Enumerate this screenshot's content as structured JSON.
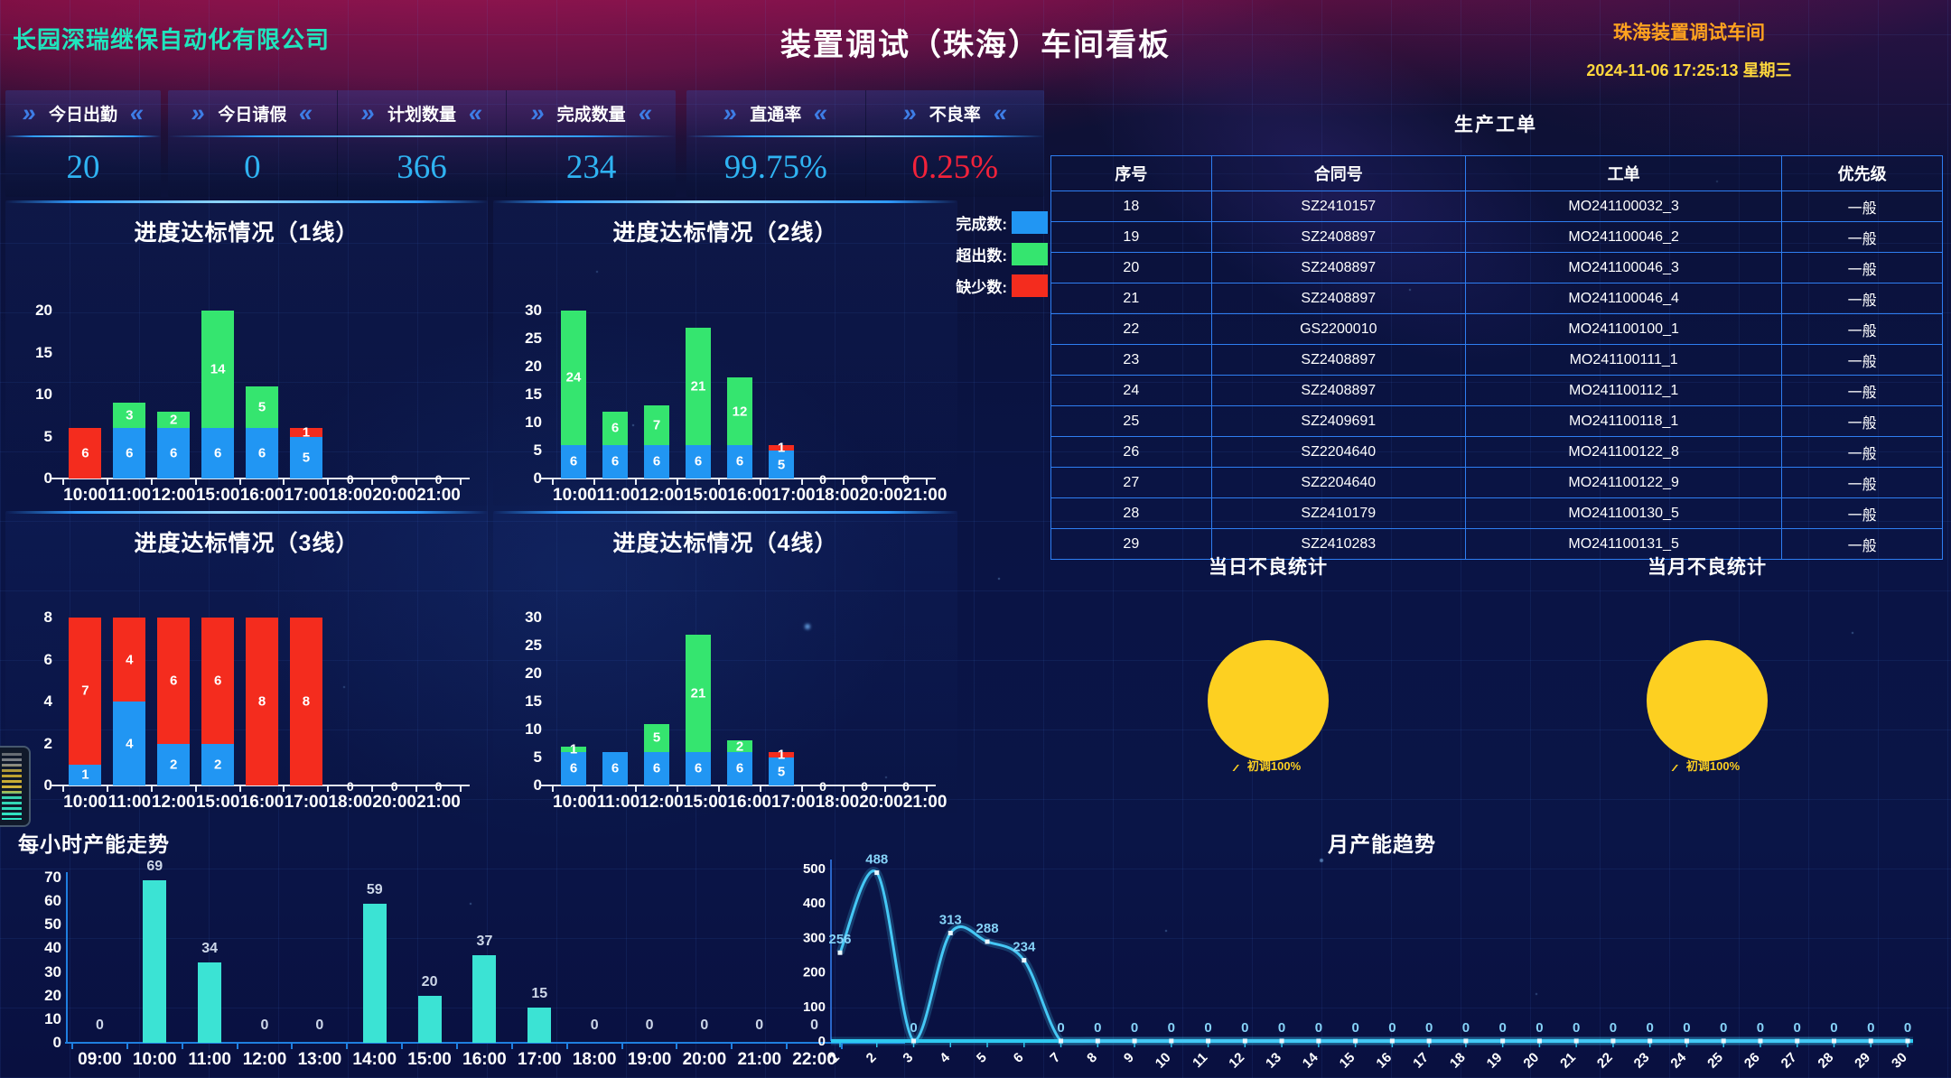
{
  "header": {
    "company": "长园深瑞继保自动化有限公司",
    "title": "装置调试（珠海）车间看板",
    "workshop": "珠海装置调试车间",
    "datetime": "2024-11-06 17:25:13 星期三"
  },
  "kpi_groups": [
    {
      "items": [
        {
          "label": "今日出勤",
          "value": "20"
        }
      ]
    },
    {
      "items": [
        {
          "label": "今日请假",
          "value": "0"
        },
        {
          "label": "计划数量",
          "value": "366"
        },
        {
          "label": "完成数量",
          "value": "234"
        }
      ]
    },
    {
      "items": [
        {
          "label": "直通率",
          "value": "99.75%"
        },
        {
          "label": "不良率",
          "value": "0.25%",
          "alert": true
        }
      ]
    }
  ],
  "legend": [
    {
      "label": "完成数:",
      "color": "#2196f3"
    },
    {
      "label": "超出数:",
      "color": "#35e56f"
    },
    {
      "label": "缺少数:",
      "color": "#f42c1e"
    }
  ],
  "table": {
    "title": "生产工单",
    "columns": [
      "序号",
      "合同号",
      "工单",
      "优先级"
    ],
    "rows": [
      [
        "18",
        "SZ2410157",
        "MO241100032_3",
        "一般"
      ],
      [
        "19",
        "SZ2408897",
        "MO241100046_2",
        "一般"
      ],
      [
        "20",
        "SZ2408897",
        "MO241100046_3",
        "一般"
      ],
      [
        "21",
        "SZ2408897",
        "MO241100046_4",
        "一般"
      ],
      [
        "22",
        "GS2200010",
        "MO241100100_1",
        "一般"
      ],
      [
        "23",
        "SZ2408897",
        "MO241100111_1",
        "一般"
      ],
      [
        "24",
        "SZ2408897",
        "MO241100112_1",
        "一般"
      ],
      [
        "25",
        "SZ2409691",
        "MO241100118_1",
        "一般"
      ],
      [
        "26",
        "SZ2204640",
        "MO241100122_8",
        "一般"
      ],
      [
        "27",
        "SZ2204640",
        "MO241100122_9",
        "一般"
      ],
      [
        "28",
        "SZ2410179",
        "MO241100130_5",
        "一般"
      ],
      [
        "29",
        "SZ2410283",
        "MO241100131_5",
        "一般"
      ]
    ]
  },
  "chart_data": [
    {
      "id": "line1",
      "type": "stacked_bar",
      "title": "进度达标情况（1线）",
      "categories": [
        "10:00",
        "11:00",
        "12:00",
        "15:00",
        "16:00",
        "17:00",
        "18:00",
        "20:00",
        "21:00"
      ],
      "series": [
        {
          "name": "完成数",
          "color": "#2196f3",
          "values": [
            0,
            6,
            6,
            6,
            6,
            5,
            0,
            0,
            0
          ]
        },
        {
          "name": "超出数",
          "color": "#35e56f",
          "values": [
            0,
            3,
            2,
            14,
            5,
            0,
            0,
            0,
            0
          ]
        },
        {
          "name": "缺少数",
          "color": "#f42c1e",
          "values": [
            6,
            0,
            0,
            0,
            0,
            1,
            0,
            0,
            0
          ]
        }
      ],
      "ymax": 20,
      "yticks": [
        0,
        5,
        10,
        15,
        20
      ]
    },
    {
      "id": "line2",
      "type": "stacked_bar",
      "title": "进度达标情况（2线）",
      "categories": [
        "10:00",
        "11:00",
        "12:00",
        "15:00",
        "16:00",
        "17:00",
        "18:00",
        "20:00",
        "21:00"
      ],
      "series": [
        {
          "name": "完成数",
          "color": "#2196f3",
          "values": [
            6,
            6,
            6,
            6,
            6,
            5,
            0,
            0,
            0
          ]
        },
        {
          "name": "超出数",
          "color": "#35e56f",
          "values": [
            24,
            6,
            7,
            21,
            12,
            0,
            0,
            0,
            0
          ]
        },
        {
          "name": "缺少数",
          "color": "#f42c1e",
          "values": [
            0,
            0,
            0,
            0,
            0,
            1,
            0,
            0,
            0
          ]
        }
      ],
      "ymax": 30,
      "yticks": [
        0,
        5,
        10,
        15,
        20,
        25,
        30
      ]
    },
    {
      "id": "line3",
      "type": "stacked_bar",
      "title": "进度达标情况（3线）",
      "categories": [
        "10:00",
        "11:00",
        "12:00",
        "15:00",
        "16:00",
        "17:00",
        "18:00",
        "20:00",
        "21:00"
      ],
      "series": [
        {
          "name": "完成数",
          "color": "#2196f3",
          "values": [
            1,
            4,
            2,
            2,
            0,
            0,
            0,
            0,
            0
          ]
        },
        {
          "name": "超出数",
          "color": "#35e56f",
          "values": [
            0,
            0,
            0,
            0,
            0,
            0,
            0,
            0,
            0
          ]
        },
        {
          "name": "缺少数",
          "color": "#f42c1e",
          "values": [
            7,
            4,
            6,
            6,
            8,
            8,
            0,
            0,
            0
          ]
        }
      ],
      "ymax": 8,
      "yticks": [
        0,
        2,
        4,
        6,
        8
      ]
    },
    {
      "id": "line4",
      "type": "stacked_bar",
      "title": "进度达标情况（4线）",
      "categories": [
        "10:00",
        "11:00",
        "12:00",
        "15:00",
        "16:00",
        "17:00",
        "18:00",
        "20:00",
        "21:00"
      ],
      "series": [
        {
          "name": "完成数",
          "color": "#2196f3",
          "values": [
            6,
            6,
            6,
            6,
            6,
            5,
            0,
            0,
            0
          ]
        },
        {
          "name": "超出数",
          "color": "#35e56f",
          "values": [
            1,
            0,
            5,
            21,
            2,
            0,
            0,
            0,
            0
          ]
        },
        {
          "name": "缺少数",
          "color": "#f42c1e",
          "values": [
            0,
            0,
            0,
            0,
            0,
            1,
            0,
            0,
            0
          ]
        }
      ],
      "ymax": 30,
      "yticks": [
        0,
        5,
        10,
        15,
        20,
        25,
        30
      ]
    },
    {
      "id": "hourly",
      "type": "bar",
      "title": "每小时产能走势",
      "categories": [
        "09:00",
        "10:00",
        "11:00",
        "12:00",
        "13:00",
        "14:00",
        "15:00",
        "16:00",
        "17:00",
        "18:00",
        "19:00",
        "20:00",
        "21:00",
        "22:00"
      ],
      "values": [
        0,
        69,
        34,
        0,
        0,
        59,
        20,
        37,
        15,
        0,
        0,
        0,
        0,
        0
      ],
      "color": "#3be3d4",
      "ymax": 70,
      "yticks": [
        0,
        10,
        20,
        30,
        40,
        50,
        60,
        70
      ]
    },
    {
      "id": "monthly",
      "type": "line",
      "title": "月产能趋势",
      "x": [
        1,
        2,
        3,
        4,
        5,
        6,
        7,
        8,
        9,
        10,
        11,
        12,
        13,
        14,
        15,
        16,
        17,
        18,
        19,
        20,
        21,
        22,
        23,
        24,
        25,
        26,
        27,
        28,
        29,
        30
      ],
      "values": [
        256,
        488,
        0,
        313,
        288,
        234,
        0,
        0,
        0,
        0,
        0,
        0,
        0,
        0,
        0,
        0,
        0,
        0,
        0,
        0,
        0,
        0,
        0,
        0,
        0,
        0,
        0,
        0,
        0,
        0
      ],
      "color": "#45c8f5",
      "ymax": 500,
      "yticks": [
        0,
        100,
        200,
        300,
        400,
        500
      ]
    },
    {
      "id": "pie_day",
      "type": "pie",
      "title": "当日不良统计",
      "caption": "初调100%",
      "slices": [
        {
          "label": "初调",
          "value": 100,
          "color": "#fdd021"
        }
      ]
    },
    {
      "id": "pie_month",
      "type": "pie",
      "title": "当月不良统计",
      "caption": "初调100%",
      "slices": [
        {
          "label": "初调",
          "value": 100,
          "color": "#fdd021"
        }
      ]
    }
  ]
}
